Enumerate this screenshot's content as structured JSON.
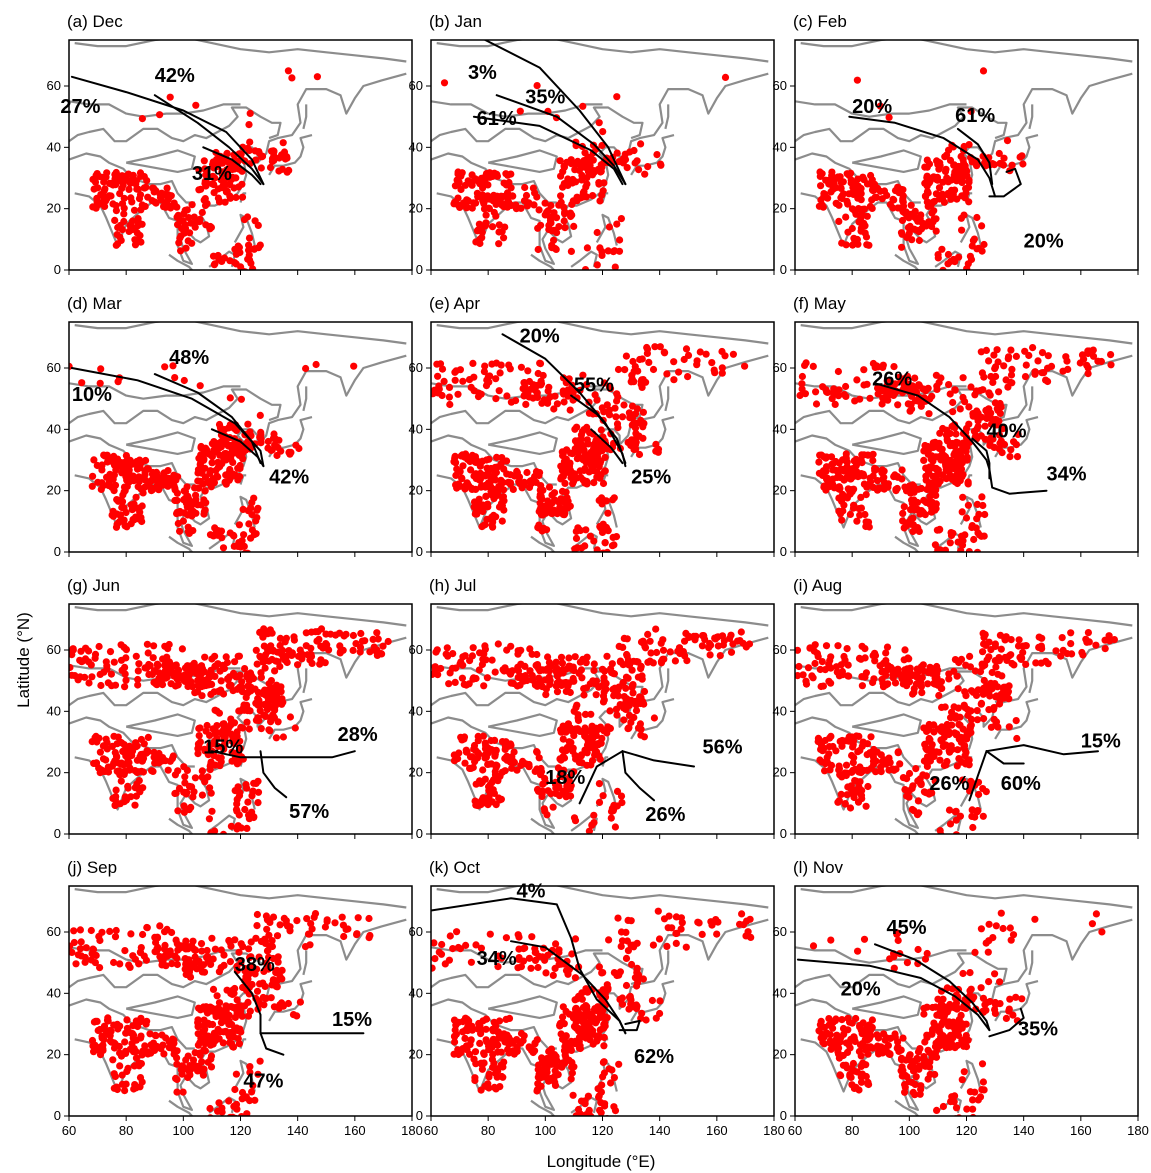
{
  "figure": {
    "xlabel": "Longitude (°E)",
    "ylabel": "Latitude (°N)"
  },
  "chart_data": {
    "type": "scatter",
    "xlim": [
      60,
      180
    ],
    "ylim": [
      0,
      75
    ],
    "xticks": [
      60,
      80,
      100,
      120,
      140,
      160,
      180
    ],
    "yticks": [
      0,
      20,
      40,
      60
    ],
    "xlabel": "Longitude (°E)",
    "ylabel": "Latitude (°N)",
    "grid": false,
    "colors": {
      "fire_points": "#ff0000",
      "coastline": "#8c8c8c",
      "trajectory": "#000000",
      "frame": "#000000"
    },
    "panels": [
      {
        "title": "(a) Dec",
        "trajectory_clusters": [
          {
            "share": "27%",
            "label_at": [
              64,
              53
            ],
            "path": [
              [
                61,
                63
              ],
              [
                80,
                58
              ],
              [
                100,
                52
              ],
              [
                115,
                45
              ],
              [
                124,
                36
              ],
              [
                128,
                28
              ]
            ]
          },
          {
            "share": "42%",
            "label_at": [
              97,
              63
            ],
            "path": [
              [
                90,
                57
              ],
              [
                105,
                48
              ],
              [
                116,
                40
              ],
              [
                124,
                33
              ],
              [
                128,
                28
              ]
            ]
          },
          {
            "share": "31%",
            "label_at": [
              110,
              31
            ],
            "path": [
              [
                107,
                40
              ],
              [
                117,
                36
              ],
              [
                124,
                31
              ],
              [
                127,
                28
              ]
            ]
          }
        ]
      },
      {
        "title": "(b) Jan",
        "trajectory_clusters": [
          {
            "share": "3%",
            "label_at": [
              78,
              64
            ],
            "path": [
              [
                79,
                75
              ],
              [
                98,
                66
              ],
              [
                112,
                52
              ],
              [
                122,
                40
              ],
              [
                128,
                28
              ]
            ]
          },
          {
            "share": "35%",
            "label_at": [
              100,
              56
            ],
            "path": [
              [
                83,
                57
              ],
              [
                104,
                50
              ],
              [
                117,
                41
              ],
              [
                124,
                34
              ],
              [
                128,
                28
              ]
            ]
          },
          {
            "share": "61%",
            "label_at": [
              83,
              49
            ],
            "path": [
              [
                75,
                50
              ],
              [
                98,
                47
              ],
              [
                116,
                39
              ],
              [
                124,
                33
              ],
              [
                127,
                28
              ]
            ]
          }
        ]
      },
      {
        "title": "(c) Feb",
        "trajectory_clusters": [
          {
            "share": "20%",
            "label_at": [
              87,
              53
            ],
            "path": [
              [
                79,
                50
              ],
              [
                95,
                48
              ],
              [
                112,
                43
              ],
              [
                124,
                36
              ],
              [
                128,
                30
              ],
              [
                130,
                24
              ]
            ]
          },
          {
            "share": "61%",
            "label_at": [
              123,
              50
            ],
            "path": [
              [
                117,
                46
              ],
              [
                124,
                41
              ],
              [
                128,
                35
              ],
              [
                129,
                28
              ]
            ]
          },
          {
            "share": "20%",
            "label_at": [
              147,
              9
            ],
            "path": [
              [
                128,
                24
              ],
              [
                133,
                24
              ],
              [
                139,
                28
              ],
              [
                137,
                33
              ],
              [
                134,
                32
              ]
            ]
          }
        ]
      },
      {
        "title": "(d) Mar",
        "trajectory_clusters": [
          {
            "share": "10%",
            "label_at": [
              68,
              51
            ],
            "path": [
              [
                61,
                60
              ],
              [
                84,
                56
              ],
              [
                103,
                50
              ],
              [
                118,
                42
              ],
              [
                127,
                33
              ],
              [
                128,
                28
              ]
            ]
          },
          {
            "share": "48%",
            "label_at": [
              102,
              63
            ],
            "path": [
              [
                90,
                58
              ],
              [
                105,
                52
              ],
              [
                117,
                44
              ],
              [
                124,
                36
              ],
              [
                127,
                29
              ]
            ]
          },
          {
            "share": "42%",
            "label_at": [
              137,
              24
            ],
            "path": [
              [
                110,
                40
              ],
              [
                120,
                36
              ],
              [
                126,
                31
              ],
              [
                128,
                28
              ]
            ]
          }
        ]
      },
      {
        "title": "(e) Apr",
        "trajectory_clusters": [
          {
            "share": "20%",
            "label_at": [
              98,
              70
            ],
            "path": [
              [
                85,
                71
              ],
              [
                100,
                63
              ],
              [
                112,
                52
              ],
              [
                121,
                42
              ],
              [
                127,
                32
              ],
              [
                128,
                28
              ]
            ]
          },
          {
            "share": "55%",
            "label_at": [
              117,
              54
            ],
            "path": [
              [
                109,
                51
              ],
              [
                118,
                45
              ],
              [
                125,
                37
              ],
              [
                128,
                29
              ]
            ]
          },
          {
            "share": "25%",
            "label_at": [
              137,
              24
            ],
            "path": [
              [
                116,
                40
              ],
              [
                123,
                34
              ],
              [
                127,
                29
              ]
            ]
          }
        ]
      },
      {
        "title": "(f) May",
        "trajectory_clusters": [
          {
            "share": "26%",
            "label_at": [
              94,
              56
            ],
            "path": [
              [
                88,
                55
              ],
              [
                103,
                51
              ],
              [
                114,
                44
              ],
              [
                122,
                36
              ],
              [
                127,
                30
              ],
              [
                128,
                27
              ]
            ]
          },
          {
            "share": "40%",
            "label_at": [
              134,
              39
            ],
            "path": [
              [
                122,
                37
              ],
              [
                127,
                33
              ],
              [
                128,
                29
              ],
              [
                128,
                24
              ]
            ]
          },
          {
            "share": "34%",
            "label_at": [
              155,
              25
            ],
            "path": [
              [
                128,
                27
              ],
              [
                129,
                21
              ],
              [
                135,
                19
              ],
              [
                148,
                20
              ]
            ]
          }
        ]
      },
      {
        "title": "(g) Jun",
        "trajectory_clusters": [
          {
            "share": "15%",
            "label_at": [
              114,
              28
            ],
            "path": [
              [
                110,
                27
              ],
              [
                120,
                25
              ],
              [
                127,
                25
              ]
            ]
          },
          {
            "share": "28%",
            "label_at": [
              161,
              32
            ],
            "path": [
              [
                127,
                25
              ],
              [
                140,
                25
              ],
              [
                152,
                25
              ],
              [
                160,
                27
              ]
            ]
          },
          {
            "share": "57%",
            "label_at": [
              144,
              7
            ],
            "path": [
              [
                127,
                27
              ],
              [
                128,
                20
              ],
              [
                132,
                15
              ],
              [
                136,
                12
              ]
            ]
          }
        ]
      },
      {
        "title": "(h) Jul",
        "trajectory_clusters": [
          {
            "share": "56%",
            "label_at": [
              162,
              28
            ],
            "path": [
              [
                127,
                27
              ],
              [
                138,
                24
              ],
              [
                152,
                22
              ]
            ]
          },
          {
            "share": "18%",
            "label_at": [
              107,
              18
            ],
            "path": [
              [
                127,
                27
              ],
              [
                118,
                22
              ],
              [
                114,
                14
              ],
              [
                112,
                10
              ]
            ]
          },
          {
            "share": "26%",
            "label_at": [
              142,
              6
            ],
            "path": [
              [
                127,
                27
              ],
              [
                128,
                20
              ],
              [
                133,
                15
              ],
              [
                138,
                11
              ]
            ]
          }
        ]
      },
      {
        "title": "(i) Aug",
        "trajectory_clusters": [
          {
            "share": "15%",
            "label_at": [
              167,
              30
            ],
            "path": [
              [
                127,
                27
              ],
              [
                140,
                29
              ],
              [
                154,
                26
              ],
              [
                166,
                27
              ]
            ]
          },
          {
            "share": "26%",
            "label_at": [
              114,
              16
            ],
            "path": [
              [
                127,
                27
              ],
              [
                124,
                19
              ],
              [
                121,
                11
              ]
            ]
          },
          {
            "share": "60%",
            "label_at": [
              139,
              16
            ],
            "path": [
              [
                127,
                27
              ],
              [
                133,
                23
              ],
              [
                140,
                23
              ]
            ]
          }
        ]
      },
      {
        "title": "(j) Sep",
        "trajectory_clusters": [
          {
            "share": "38%",
            "label_at": [
              125,
              49
            ],
            "path": [
              [
                118,
                47
              ],
              [
                124,
                40
              ],
              [
                127,
                33
              ],
              [
                127,
                27
              ]
            ]
          },
          {
            "share": "15%",
            "label_at": [
              159,
              31
            ],
            "path": [
              [
                127,
                27
              ],
              [
                145,
                27
              ],
              [
                163,
                27
              ]
            ]
          },
          {
            "share": "47%",
            "label_at": [
              128,
              11
            ],
            "path": [
              [
                127,
                27
              ],
              [
                129,
                22
              ],
              [
                135,
                20
              ]
            ]
          }
        ]
      },
      {
        "title": "(k) Oct",
        "trajectory_clusters": [
          {
            "share": "4%",
            "label_at": [
              95,
              73
            ],
            "path": [
              [
                60,
                67
              ],
              [
                88,
                71
              ],
              [
                104,
                69
              ],
              [
                109,
                58
              ],
              [
                112,
                48
              ],
              [
                118,
                38
              ],
              [
                126,
                31
              ],
              [
                128,
                27
              ]
            ]
          },
          {
            "share": "34%",
            "label_at": [
              83,
              51
            ],
            "path": [
              [
                88,
                57
              ],
              [
                100,
                55
              ],
              [
                113,
                46
              ],
              [
                121,
                38
              ],
              [
                126,
                31
              ],
              [
                128,
                27
              ]
            ]
          },
          {
            "share": "62%",
            "label_at": [
              138,
              19
            ],
            "path": [
              [
                126,
                28
              ],
              [
                132,
                28
              ],
              [
                133,
                31
              ],
              [
                128,
                30
              ]
            ]
          }
        ]
      },
      {
        "title": "(l) Nov",
        "trajectory_clusters": [
          {
            "share": "45%",
            "label_at": [
              99,
              61
            ],
            "path": [
              [
                88,
                56
              ],
              [
                102,
                51
              ],
              [
                114,
                44
              ],
              [
                122,
                37
              ],
              [
                127,
                31
              ],
              [
                128,
                28
              ]
            ]
          },
          {
            "share": "20%",
            "label_at": [
              83,
              41
            ],
            "path": [
              [
                61,
                51
              ],
              [
                86,
                49
              ],
              [
                104,
                45
              ],
              [
                116,
                39
              ],
              [
                124,
                33
              ],
              [
                128,
                28
              ]
            ]
          },
          {
            "share": "35%",
            "label_at": [
              145,
              28
            ],
            "path": [
              [
                128,
                26
              ],
              [
                135,
                28
              ],
              [
                140,
                32
              ],
              [
                139,
                35
              ]
            ]
          }
        ]
      }
    ]
  }
}
